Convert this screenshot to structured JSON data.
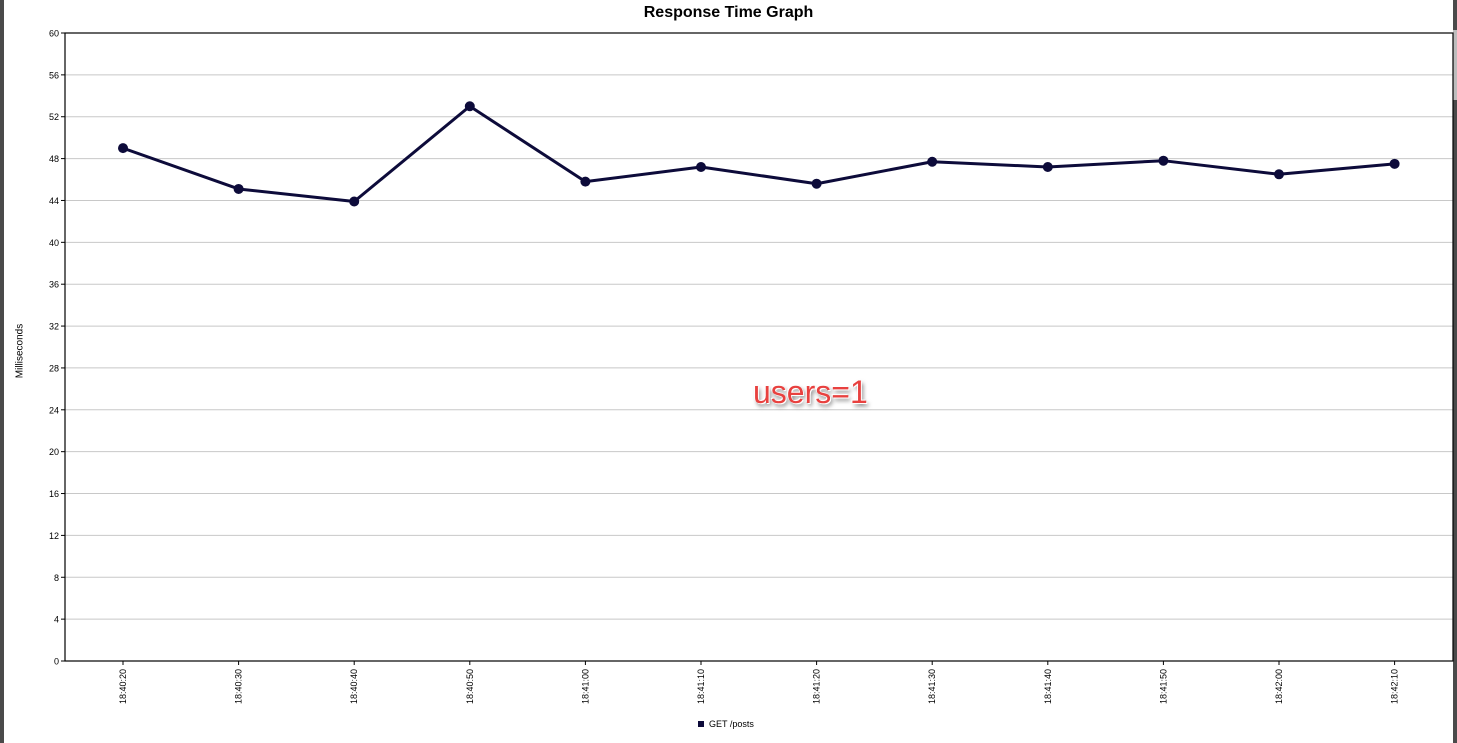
{
  "chart_data": {
    "type": "line",
    "title": "Response Time Graph",
    "xlabel": "",
    "ylabel": "Milliseconds",
    "ylim": [
      0,
      60
    ],
    "yticks": [
      0,
      4,
      8,
      12,
      16,
      20,
      24,
      28,
      32,
      36,
      40,
      44,
      48,
      52,
      56,
      60
    ],
    "categories": [
      "18:40:20",
      "18:40:30",
      "18:40:40",
      "18:40:50",
      "18:41:00",
      "18:41:10",
      "18:41:20",
      "18:41:30",
      "18:41:40",
      "18:41:50",
      "18:42:00",
      "18:42:10"
    ],
    "series": [
      {
        "name": "GET /posts",
        "color": "#0d0b3a",
        "values": [
          49,
          45.1,
          43.9,
          53,
          45.8,
          47.2,
          45.6,
          47.7,
          47.2,
          47.8,
          46.5,
          47.5
        ]
      }
    ],
    "grid": true,
    "legend_position": "bottom-center",
    "annotation": "users=1",
    "annotation_color": "#e8413f"
  }
}
